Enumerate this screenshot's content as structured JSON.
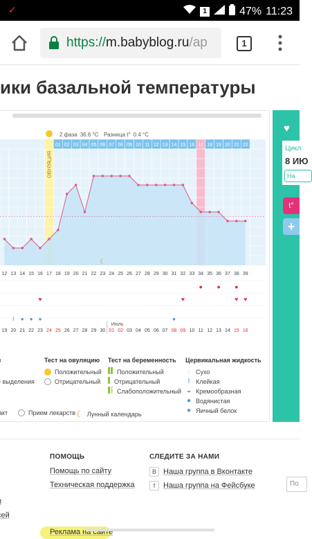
{
  "status_bar": {
    "notif_icon": "android-notification-icon",
    "sim_badge": "1",
    "battery": "47%",
    "time": "11:23"
  },
  "browser": {
    "url_scheme": "https://",
    "url_host": "m.babyblog.ru",
    "url_path": "/ap",
    "tab_count": "1"
  },
  "page": {
    "title": "ики базальной температуры"
  },
  "side_panel": {
    "cycle_label": "Цикл",
    "cycle_value": "8 ИЮ",
    "cycle_button": "На",
    "pink_button_label": "t°",
    "blue_button_label": "+"
  },
  "chart_header": {
    "phase_label": "2 фаза",
    "phase_value": "36.6 °C",
    "diff_label": "Разница t°",
    "diff_value": "0.4 °C",
    "ovulation_label": "ОВУЛЯЦИЯ"
  },
  "chart_data": {
    "type": "line",
    "cycle_days": [
      "01",
      "02",
      "03",
      "04",
      "05",
      "06",
      "07",
      "08",
      "09",
      "10",
      "11",
      "12",
      "13",
      "14",
      "15",
      "16",
      "17",
      "18",
      "19",
      "20",
      "21",
      "22"
    ],
    "highlighted_cycle_day": "17",
    "day_numbers": [
      "12",
      "13",
      "14",
      "15",
      "16",
      "17",
      "18",
      "19",
      "20",
      "21",
      "22",
      "23",
      "24",
      "25",
      "26",
      "27",
      "28",
      "29",
      "30",
      "31",
      "32",
      "33",
      "34",
      "35",
      "36",
      "37",
      "38",
      "39"
    ],
    "dates": [
      "19",
      "20",
      "21",
      "22",
      "23",
      "24",
      "25",
      "26",
      "27",
      "28",
      "29",
      "30",
      "01",
      "02",
      "03",
      "04",
      "05",
      "06",
      "07",
      "08",
      "09",
      "10",
      "11",
      "12",
      "13",
      "14",
      "15",
      "16"
    ],
    "red_dates": [
      "24",
      "25",
      "01",
      "02",
      "08",
      "09",
      "15",
      "16"
    ],
    "month_label": "Июль",
    "temperature_levels": [
      2,
      1,
      1,
      2,
      1,
      2,
      3,
      7,
      8,
      5,
      9,
      9,
      9,
      9,
      9,
      8,
      8,
      8,
      8,
      8,
      8,
      6,
      5,
      5,
      5,
      4,
      4,
      4
    ]
  },
  "legend": {
    "col1_title": "я",
    "col1_items": [
      "",
      "е выделения"
    ],
    "col2_title": "Тест на овуляцию",
    "col2_items": [
      "Положительный",
      "Отрицательный"
    ],
    "col3_title": "Тест на беременность",
    "col3_items": [
      "Положительный",
      "Отрицательный",
      "Слабоположительный"
    ],
    "col4_title": "Цервикальная жидкость",
    "col4_items": [
      "Сухо",
      "Клейкая",
      "Кремообразная",
      "Водянистая",
      "Яичный белок"
    ],
    "bottom_items": [
      "акт",
      "Прием лекарств",
      "Лунный календарь"
    ]
  },
  "footer": {
    "help_title": "ПОМОЩЬ",
    "help_links": [
      "Помощь по сайту",
      "Техническая поддержка",
      "Реклама на сайте"
    ],
    "follow_title": "СЛЕДИТЕ ЗА НАМИ",
    "follow_links": [
      "Наша группа в Вконтакте",
      "Наша группа на Фейсбуке"
    ],
    "left_partial": [
      "и",
      "сей"
    ],
    "input_placeholder": "По"
  },
  "colors": {
    "accent": "#2dc3a8",
    "chart_fill": "#c7e4f6",
    "chart_line": "#e05a8a",
    "ovulation": "#fff3a6",
    "highlight_day": "#f7b6c8"
  }
}
